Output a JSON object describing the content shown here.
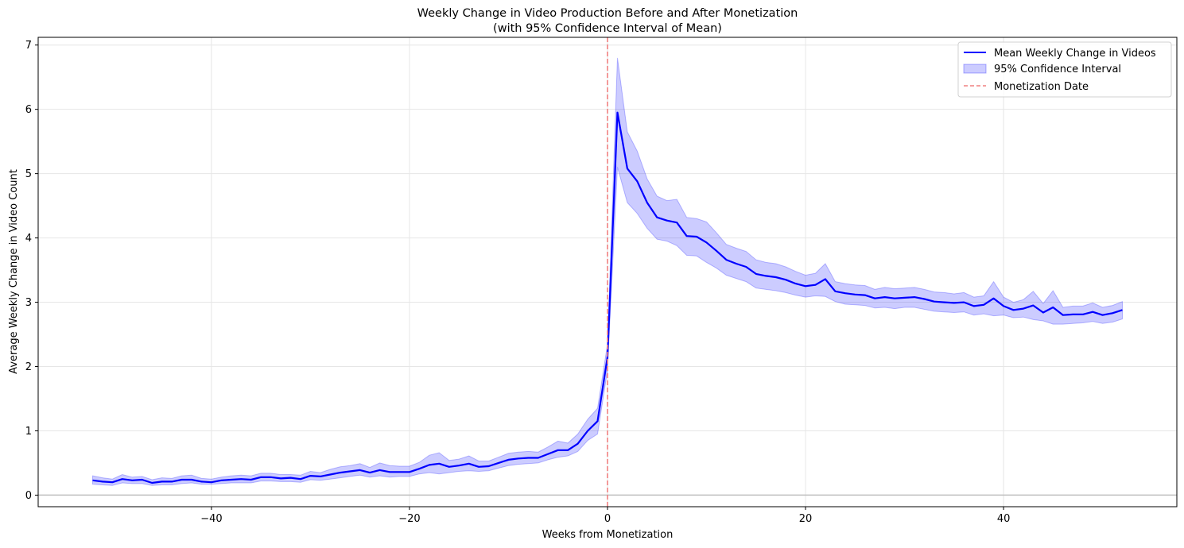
{
  "chart_data": {
    "type": "line",
    "title": "Weekly Change in Video Production Before and After Monetization",
    "subtitle": "(with 95% Confidence Interval of Mean)",
    "xlabel": "Weeks from Monetization",
    "ylabel": "Average Weekly Change in Video Count",
    "xlim": [
      -57.5,
      57.5
    ],
    "ylim": [
      -0.18,
      7.12
    ],
    "xticks": [
      -40,
      -20,
      0,
      20,
      40
    ],
    "yticks": [
      0,
      1,
      2,
      3,
      4,
      5,
      6,
      7
    ],
    "grid": true,
    "legend_position": "upper right",
    "colors": {
      "mean": "#0000ff",
      "ci_fill": "#0000ff",
      "vline": "#f08080",
      "hline": "#bfbfbf"
    },
    "vline": {
      "x": 0,
      "label": "Monetization Date"
    },
    "hline": {
      "y": 0
    },
    "series": [
      {
        "name": "Mean Weekly Change in Videos",
        "ci_name": "95% Confidence Interval",
        "x": [
          -52,
          -51,
          -50,
          -49,
          -48,
          -47,
          -46,
          -45,
          -44,
          -43,
          -42,
          -41,
          -40,
          -39,
          -38,
          -37,
          -36,
          -35,
          -34,
          -33,
          -32,
          -31,
          -30,
          -29,
          -28,
          -27,
          -26,
          -25,
          -24,
          -23,
          -22,
          -21,
          -20,
          -19,
          -18,
          -17,
          -16,
          -15,
          -14,
          -13,
          -12,
          -11,
          -10,
          -9,
          -8,
          -7,
          -6,
          -5,
          -4,
          -3,
          -2,
          -1,
          0,
          1,
          2,
          3,
          4,
          5,
          6,
          7,
          8,
          9,
          10,
          11,
          12,
          13,
          14,
          15,
          16,
          17,
          18,
          19,
          20,
          21,
          22,
          23,
          24,
          25,
          26,
          27,
          28,
          29,
          30,
          31,
          32,
          33,
          34,
          35,
          36,
          37,
          38,
          39,
          40,
          41,
          42,
          43,
          44,
          45,
          46,
          47,
          48,
          49,
          50,
          51,
          52
        ],
        "mean": [
          0.23,
          0.21,
          0.2,
          0.25,
          0.23,
          0.24,
          0.19,
          0.21,
          0.21,
          0.24,
          0.24,
          0.21,
          0.2,
          0.23,
          0.24,
          0.25,
          0.24,
          0.28,
          0.28,
          0.26,
          0.27,
          0.25,
          0.3,
          0.29,
          0.32,
          0.35,
          0.37,
          0.39,
          0.35,
          0.39,
          0.36,
          0.36,
          0.36,
          0.41,
          0.47,
          0.49,
          0.44,
          0.46,
          0.49,
          0.44,
          0.45,
          0.5,
          0.55,
          0.57,
          0.58,
          0.58,
          0.64,
          0.7,
          0.7,
          0.8,
          1.0,
          1.15,
          2.15,
          5.95,
          5.08,
          4.88,
          4.55,
          4.32,
          4.27,
          4.24,
          4.03,
          4.02,
          3.93,
          3.8,
          3.66,
          3.6,
          3.55,
          3.44,
          3.41,
          3.39,
          3.35,
          3.29,
          3.25,
          3.27,
          3.36,
          3.17,
          3.14,
          3.12,
          3.11,
          3.06,
          3.08,
          3.06,
          3.07,
          3.08,
          3.05,
          3.01,
          3.0,
          2.99,
          3.0,
          2.94,
          2.96,
          3.06,
          2.94,
          2.88,
          2.9,
          2.95,
          2.84,
          2.92,
          2.8,
          2.81,
          2.81,
          2.85,
          2.8,
          2.83,
          2.88
        ],
        "ci_lower": [
          0.17,
          0.16,
          0.15,
          0.19,
          0.18,
          0.18,
          0.15,
          0.16,
          0.16,
          0.18,
          0.19,
          0.17,
          0.17,
          0.18,
          0.19,
          0.19,
          0.19,
          0.22,
          0.22,
          0.21,
          0.21,
          0.2,
          0.24,
          0.23,
          0.25,
          0.27,
          0.29,
          0.31,
          0.28,
          0.3,
          0.28,
          0.29,
          0.29,
          0.33,
          0.35,
          0.33,
          0.35,
          0.37,
          0.38,
          0.37,
          0.38,
          0.42,
          0.46,
          0.48,
          0.49,
          0.5,
          0.55,
          0.59,
          0.61,
          0.68,
          0.85,
          0.95,
          1.95,
          5.1,
          4.55,
          4.38,
          4.15,
          3.98,
          3.95,
          3.88,
          3.73,
          3.72,
          3.62,
          3.53,
          3.42,
          3.37,
          3.32,
          3.22,
          3.2,
          3.18,
          3.15,
          3.11,
          3.08,
          3.1,
          3.09,
          3.01,
          2.97,
          2.96,
          2.95,
          2.91,
          2.92,
          2.9,
          2.92,
          2.92,
          2.89,
          2.86,
          2.85,
          2.84,
          2.85,
          2.8,
          2.82,
          2.79,
          2.8,
          2.76,
          2.77,
          2.73,
          2.71,
          2.66,
          2.66,
          2.67,
          2.68,
          2.7,
          2.67,
          2.69,
          2.74
        ],
        "ci_upper": [
          0.3,
          0.27,
          0.25,
          0.32,
          0.28,
          0.29,
          0.24,
          0.27,
          0.26,
          0.3,
          0.31,
          0.26,
          0.25,
          0.28,
          0.3,
          0.31,
          0.3,
          0.34,
          0.34,
          0.32,
          0.32,
          0.31,
          0.37,
          0.35,
          0.4,
          0.44,
          0.46,
          0.49,
          0.43,
          0.5,
          0.46,
          0.45,
          0.45,
          0.51,
          0.62,
          0.66,
          0.54,
          0.56,
          0.61,
          0.53,
          0.53,
          0.59,
          0.65,
          0.67,
          0.68,
          0.67,
          0.75,
          0.84,
          0.81,
          0.95,
          1.18,
          1.35,
          2.35,
          6.8,
          5.65,
          5.35,
          4.92,
          4.65,
          4.58,
          4.6,
          4.32,
          4.3,
          4.25,
          4.08,
          3.9,
          3.84,
          3.79,
          3.66,
          3.62,
          3.6,
          3.55,
          3.48,
          3.42,
          3.45,
          3.6,
          3.32,
          3.29,
          3.27,
          3.26,
          3.2,
          3.23,
          3.21,
          3.22,
          3.23,
          3.2,
          3.16,
          3.15,
          3.13,
          3.15,
          3.08,
          3.1,
          3.32,
          3.08,
          3.0,
          3.04,
          3.17,
          2.98,
          3.18,
          2.92,
          2.94,
          2.94,
          2.99,
          2.92,
          2.95,
          3.01
        ]
      }
    ]
  }
}
